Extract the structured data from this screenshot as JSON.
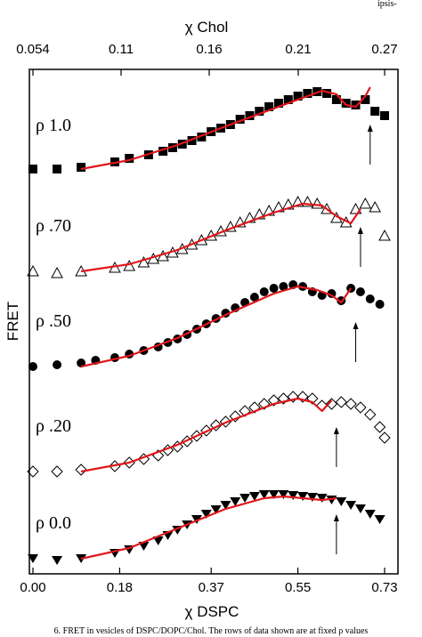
{
  "top_caption": "ipsis-",
  "bottom_caption": "6. FRET in vesicles of DSPC/DOPC/Chol. The rows of data shown are at fixed ρ values",
  "chart_data": {
    "type": "scatter",
    "xlabel": "χ DSPC",
    "ylabel": "FRET",
    "top_xlabel": "χ Chol",
    "xlim": [
      0.0,
      0.75
    ],
    "x_ticks": [
      0.0,
      0.18,
      0.37,
      0.55,
      0.73
    ],
    "x_tick_labels": [
      "0.00",
      "0.18",
      "0.37",
      "0.55",
      "0.73"
    ],
    "top_ticks": [
      0.054,
      0.11,
      0.16,
      0.21,
      0.27
    ],
    "top_tick_labels": [
      "0.054",
      "0.11",
      "0.16",
      "0.21",
      "0.27"
    ],
    "fit_color": "#e0161b",
    "marker_color": "#000000",
    "series": [
      {
        "name": "ρ 1.0",
        "marker": "square-filled",
        "baseline": 0.0,
        "points": [
          [
            0.0,
            0.0
          ],
          [
            0.05,
            0.0
          ],
          [
            0.1,
            0.02
          ],
          [
            0.17,
            0.08
          ],
          [
            0.2,
            0.12
          ],
          [
            0.24,
            0.16
          ],
          [
            0.27,
            0.2
          ],
          [
            0.29,
            0.24
          ],
          [
            0.31,
            0.28
          ],
          [
            0.33,
            0.32
          ],
          [
            0.35,
            0.36
          ],
          [
            0.37,
            0.42
          ],
          [
            0.39,
            0.46
          ],
          [
            0.41,
            0.5
          ],
          [
            0.43,
            0.56
          ],
          [
            0.45,
            0.6
          ],
          [
            0.47,
            0.65
          ],
          [
            0.49,
            0.7
          ],
          [
            0.51,
            0.74
          ],
          [
            0.53,
            0.78
          ],
          [
            0.55,
            0.82
          ],
          [
            0.57,
            0.85
          ],
          [
            0.59,
            0.87
          ],
          [
            0.61,
            0.85
          ],
          [
            0.63,
            0.78
          ],
          [
            0.65,
            0.74
          ],
          [
            0.67,
            0.72
          ],
          [
            0.69,
            0.78
          ],
          [
            0.71,
            0.65
          ],
          [
            0.73,
            0.6
          ]
        ],
        "fit": [
          [
            0.1,
            0.0
          ],
          [
            0.2,
            0.1
          ],
          [
            0.3,
            0.27
          ],
          [
            0.4,
            0.48
          ],
          [
            0.5,
            0.68
          ],
          [
            0.56,
            0.8
          ],
          [
            0.6,
            0.88
          ],
          [
            0.63,
            0.84
          ],
          [
            0.65,
            0.72
          ],
          [
            0.67,
            0.7
          ],
          [
            0.69,
            0.82
          ],
          [
            0.7,
            0.92
          ]
        ],
        "arrow_x": 0.7
      },
      {
        "name": "ρ .70",
        "marker": "triangle-open",
        "baseline": 0.0,
        "points": [
          [
            0.0,
            0.0
          ],
          [
            0.05,
            -0.02
          ],
          [
            0.1,
            0.0
          ],
          [
            0.17,
            0.04
          ],
          [
            0.2,
            0.06
          ],
          [
            0.23,
            0.1
          ],
          [
            0.25,
            0.14
          ],
          [
            0.27,
            0.17
          ],
          [
            0.29,
            0.21
          ],
          [
            0.31,
            0.25
          ],
          [
            0.33,
            0.3
          ],
          [
            0.35,
            0.35
          ],
          [
            0.37,
            0.4
          ],
          [
            0.39,
            0.45
          ],
          [
            0.41,
            0.5
          ],
          [
            0.43,
            0.55
          ],
          [
            0.45,
            0.6
          ],
          [
            0.47,
            0.64
          ],
          [
            0.49,
            0.68
          ],
          [
            0.51,
            0.72
          ],
          [
            0.53,
            0.75
          ],
          [
            0.55,
            0.78
          ],
          [
            0.57,
            0.78
          ],
          [
            0.59,
            0.76
          ],
          [
            0.61,
            0.7
          ],
          [
            0.63,
            0.6
          ],
          [
            0.65,
            0.55
          ],
          [
            0.67,
            0.7
          ],
          [
            0.69,
            0.76
          ],
          [
            0.71,
            0.72
          ],
          [
            0.73,
            0.4
          ]
        ],
        "fit": [
          [
            0.1,
            0.0
          ],
          [
            0.2,
            0.08
          ],
          [
            0.3,
            0.24
          ],
          [
            0.4,
            0.46
          ],
          [
            0.5,
            0.66
          ],
          [
            0.56,
            0.76
          ],
          [
            0.6,
            0.74
          ],
          [
            0.63,
            0.62
          ],
          [
            0.66,
            0.54
          ],
          [
            0.68,
            0.7
          ]
        ],
        "arrow_x": 0.68
      },
      {
        "name": "ρ .50",
        "marker": "circle-filled",
        "baseline": 0.0,
        "points": [
          [
            0.0,
            0.0
          ],
          [
            0.05,
            0.02
          ],
          [
            0.1,
            0.04
          ],
          [
            0.13,
            0.07
          ],
          [
            0.17,
            0.1
          ],
          [
            0.2,
            0.14
          ],
          [
            0.23,
            0.18
          ],
          [
            0.26,
            0.22
          ],
          [
            0.28,
            0.27
          ],
          [
            0.3,
            0.31
          ],
          [
            0.32,
            0.36
          ],
          [
            0.34,
            0.42
          ],
          [
            0.36,
            0.48
          ],
          [
            0.38,
            0.54
          ],
          [
            0.4,
            0.6
          ],
          [
            0.42,
            0.66
          ],
          [
            0.44,
            0.72
          ],
          [
            0.46,
            0.78
          ],
          [
            0.48,
            0.84
          ],
          [
            0.5,
            0.88
          ],
          [
            0.52,
            0.9
          ],
          [
            0.54,
            0.92
          ],
          [
            0.56,
            0.9
          ],
          [
            0.58,
            0.84
          ],
          [
            0.6,
            0.8
          ],
          [
            0.62,
            0.82
          ],
          [
            0.64,
            0.74
          ],
          [
            0.66,
            0.88
          ],
          [
            0.68,
            0.84
          ],
          [
            0.7,
            0.76
          ],
          [
            0.72,
            0.7
          ]
        ],
        "fit": [
          [
            0.1,
            0.0
          ],
          [
            0.2,
            0.12
          ],
          [
            0.3,
            0.32
          ],
          [
            0.4,
            0.58
          ],
          [
            0.5,
            0.82
          ],
          [
            0.55,
            0.9
          ],
          [
            0.59,
            0.86
          ],
          [
            0.62,
            0.8
          ],
          [
            0.64,
            0.72
          ],
          [
            0.66,
            0.88
          ]
        ],
        "arrow_x": 0.67
      },
      {
        "name": "ρ .20",
        "marker": "diamond-open",
        "baseline": 0.0,
        "points": [
          [
            0.0,
            0.0
          ],
          [
            0.05,
            0.0
          ],
          [
            0.1,
            0.02
          ],
          [
            0.17,
            0.06
          ],
          [
            0.2,
            0.1
          ],
          [
            0.23,
            0.14
          ],
          [
            0.26,
            0.18
          ],
          [
            0.28,
            0.24
          ],
          [
            0.3,
            0.28
          ],
          [
            0.32,
            0.34
          ],
          [
            0.34,
            0.4
          ],
          [
            0.36,
            0.46
          ],
          [
            0.38,
            0.52
          ],
          [
            0.4,
            0.56
          ],
          [
            0.42,
            0.62
          ],
          [
            0.44,
            0.68
          ],
          [
            0.46,
            0.72
          ],
          [
            0.48,
            0.76
          ],
          [
            0.5,
            0.8
          ],
          [
            0.52,
            0.82
          ],
          [
            0.54,
            0.84
          ],
          [
            0.56,
            0.84
          ],
          [
            0.58,
            0.82
          ],
          [
            0.6,
            0.74
          ],
          [
            0.62,
            0.76
          ],
          [
            0.64,
            0.78
          ],
          [
            0.66,
            0.76
          ],
          [
            0.68,
            0.72
          ],
          [
            0.7,
            0.64
          ],
          [
            0.72,
            0.5
          ],
          [
            0.73,
            0.38
          ]
        ],
        "fit": [
          [
            0.1,
            0.0
          ],
          [
            0.2,
            0.1
          ],
          [
            0.3,
            0.3
          ],
          [
            0.4,
            0.55
          ],
          [
            0.5,
            0.76
          ],
          [
            0.55,
            0.82
          ],
          [
            0.58,
            0.78
          ],
          [
            0.6,
            0.68
          ],
          [
            0.62,
            0.8
          ]
        ],
        "arrow_x": 0.63
      },
      {
        "name": "ρ 0.0",
        "marker": "triangle-down-filled",
        "baseline": 0.0,
        "points": [
          [
            0.0,
            0.0
          ],
          [
            0.05,
            -0.02
          ],
          [
            0.1,
            0.0
          ],
          [
            0.17,
            0.06
          ],
          [
            0.2,
            0.1
          ],
          [
            0.23,
            0.14
          ],
          [
            0.26,
            0.2
          ],
          [
            0.28,
            0.26
          ],
          [
            0.3,
            0.32
          ],
          [
            0.32,
            0.38
          ],
          [
            0.34,
            0.44
          ],
          [
            0.36,
            0.5
          ],
          [
            0.38,
            0.55
          ],
          [
            0.4,
            0.6
          ],
          [
            0.42,
            0.64
          ],
          [
            0.44,
            0.68
          ],
          [
            0.46,
            0.7
          ],
          [
            0.48,
            0.72
          ],
          [
            0.5,
            0.72
          ],
          [
            0.52,
            0.72
          ],
          [
            0.54,
            0.71
          ],
          [
            0.56,
            0.7
          ],
          [
            0.58,
            0.69
          ],
          [
            0.6,
            0.68
          ],
          [
            0.62,
            0.66
          ],
          [
            0.64,
            0.64
          ],
          [
            0.66,
            0.6
          ],
          [
            0.68,
            0.56
          ],
          [
            0.7,
            0.5
          ],
          [
            0.72,
            0.44
          ]
        ],
        "fit": [
          [
            0.1,
            0.0
          ],
          [
            0.2,
            0.12
          ],
          [
            0.3,
            0.34
          ],
          [
            0.4,
            0.56
          ],
          [
            0.48,
            0.68
          ],
          [
            0.52,
            0.7
          ],
          [
            0.56,
            0.68
          ],
          [
            0.6,
            0.66
          ],
          [
            0.63,
            0.68
          ]
        ],
        "arrow_x": 0.63
      }
    ]
  }
}
